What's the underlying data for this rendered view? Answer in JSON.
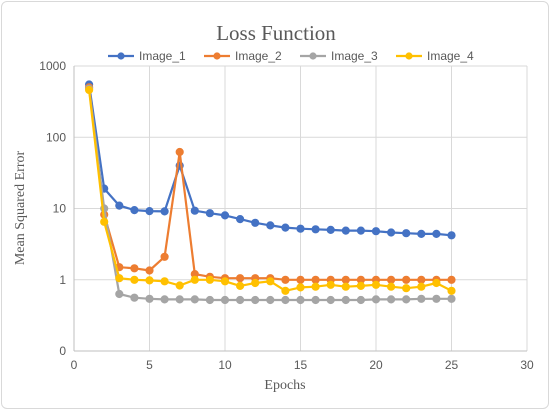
{
  "chart_data": {
    "type": "line",
    "title": "Loss Function",
    "xlabel": "Epochs",
    "ylabel": "Mean Squared Error",
    "xlim": [
      0,
      30
    ],
    "x_ticks": [
      "0",
      "5",
      "10",
      "15",
      "20",
      "25",
      "30"
    ],
    "y_scale": "log",
    "y_ticks": [
      "0",
      "1",
      "10",
      "100",
      "1000"
    ],
    "grid": true,
    "legend_position": "top",
    "x": [
      1,
      2,
      3,
      4,
      5,
      6,
      7,
      8,
      9,
      10,
      11,
      12,
      13,
      14,
      15,
      16,
      17,
      18,
      19,
      20,
      21,
      22,
      23,
      24,
      25
    ],
    "series": [
      {
        "name": "Image_1",
        "color": "#4472C4",
        "values": [
          550,
          19,
          11,
          9.5,
          9.2,
          9.1,
          40,
          9.3,
          8.6,
          8.0,
          7.1,
          6.3,
          5.8,
          5.4,
          5.2,
          5.1,
          5.0,
          4.9,
          4.9,
          4.8,
          4.6,
          4.5,
          4.4,
          4.4,
          4.2
        ]
      },
      {
        "name": "Image_2",
        "color": "#ED7D31",
        "values": [
          500,
          8.2,
          1.5,
          1.45,
          1.35,
          2.1,
          62,
          1.2,
          1.1,
          1.05,
          1.05,
          1.05,
          1.05,
          1.0,
          1.0,
          1.0,
          1.0,
          1.0,
          1.0,
          1.0,
          1.0,
          1.0,
          1.0,
          1.0,
          1.0
        ]
      },
      {
        "name": "Image_3",
        "color": "#A5A5A5",
        "values": [
          480,
          10,
          0.63,
          0.56,
          0.54,
          0.53,
          0.53,
          0.53,
          0.52,
          0.52,
          0.52,
          0.52,
          0.52,
          0.52,
          0.52,
          0.52,
          0.52,
          0.52,
          0.52,
          0.53,
          0.53,
          0.53,
          0.54,
          0.54,
          0.54
        ]
      },
      {
        "name": "Image_4",
        "color": "#FFC000",
        "values": [
          460,
          6.5,
          1.05,
          1.0,
          0.98,
          0.95,
          0.83,
          1.0,
          1.0,
          0.95,
          0.82,
          0.9,
          0.95,
          0.7,
          0.78,
          0.8,
          0.85,
          0.8,
          0.82,
          0.85,
          0.8,
          0.76,
          0.8,
          0.9,
          0.7
        ]
      }
    ]
  }
}
